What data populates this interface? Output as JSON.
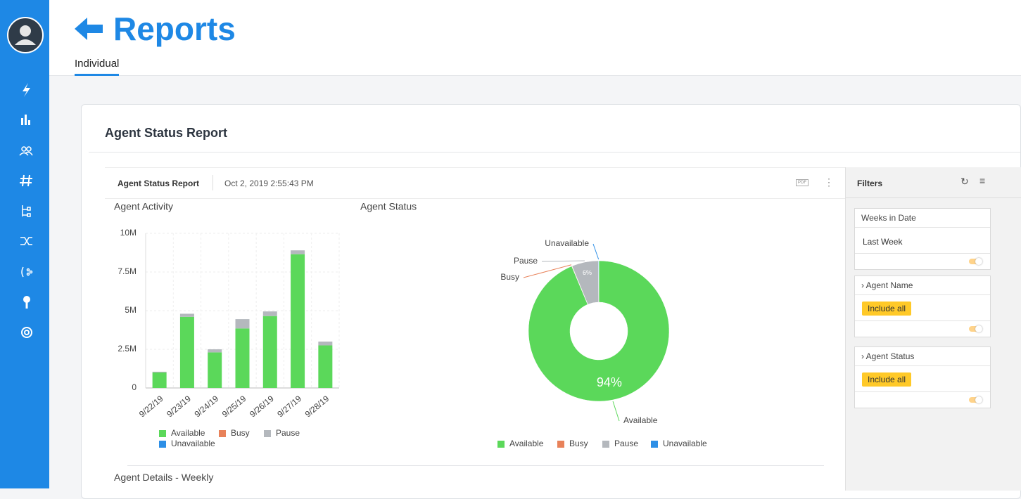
{
  "header": {
    "title": "Reports",
    "tab": "Individual"
  },
  "report": {
    "title": "Agent Status Report",
    "toolbar_title": "Agent Status Report",
    "timestamp": "Oct 2, 2019 2:55:43 PM",
    "pdf": "PDF",
    "footer_section": "Agent Details - Weekly"
  },
  "filters": {
    "title": "Filters",
    "groups": [
      {
        "label": "Weeks in Date",
        "value": "Last Week"
      },
      {
        "label": "Agent Name",
        "value": "Include all"
      },
      {
        "label": "Agent Status",
        "value": "Include all"
      }
    ]
  },
  "chart_data": [
    {
      "type": "bar",
      "stacked": true,
      "title": "Agent Activity",
      "categories": [
        "9/22/19",
        "9/23/19",
        "9/24/19",
        "9/25/19",
        "9/26/19",
        "9/27/19",
        "9/28/19"
      ],
      "series": [
        {
          "name": "Available",
          "color": "#5bd85a",
          "values": [
            1000000,
            4600000,
            2300000,
            3850000,
            4650000,
            8650000,
            2750000
          ]
        },
        {
          "name": "Busy",
          "color": "#e8825a",
          "values": [
            0,
            0,
            0,
            0,
            0,
            0,
            0
          ]
        },
        {
          "name": "Pause",
          "color": "#b4b8bd",
          "values": [
            50000,
            200000,
            200000,
            600000,
            300000,
            250000,
            250000
          ]
        },
        {
          "name": "Unavailable",
          "color": "#2d8fe6",
          "values": [
            0,
            0,
            0,
            0,
            0,
            0,
            0
          ]
        }
      ],
      "ylim": [
        0,
        10000000
      ],
      "yticks": [
        0,
        {
          "value": 2500000,
          "label": "2.5M"
        },
        {
          "value": 5000000,
          "label": "5M"
        },
        {
          "value": 7500000,
          "label": "7.5M"
        },
        {
          "value": 10000000,
          "label": "10M"
        }
      ],
      "grid": true
    },
    {
      "type": "pie",
      "donut": true,
      "title": "Agent Status",
      "categories": [
        "Available",
        "Busy",
        "Pause",
        "Unavailable"
      ],
      "values": [
        93.7,
        0.1,
        6.1,
        0.1
      ],
      "value_labels": [
        "94%",
        null,
        "6%",
        null
      ],
      "colors": [
        "#5bd85a",
        "#e8825a",
        "#b4b8bd",
        "#2d8fe6"
      ]
    }
  ]
}
